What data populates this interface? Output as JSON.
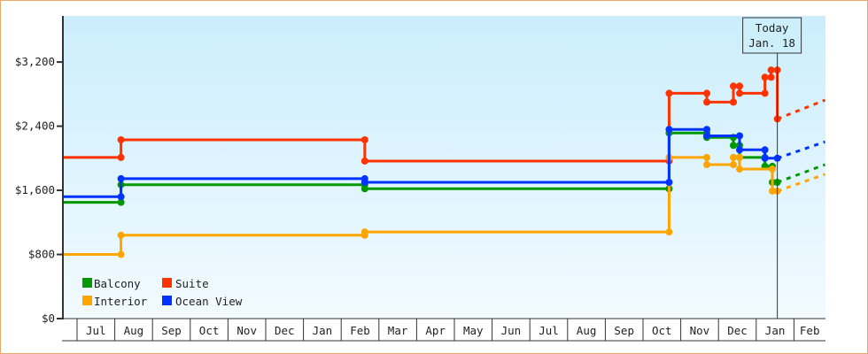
{
  "chart_data": {
    "type": "line",
    "step": true,
    "title": "",
    "xlabel": "",
    "ylabel": "",
    "ylim": [
      0,
      3775
    ],
    "y_ticks": [
      0,
      800,
      1600,
      2400,
      3200
    ],
    "y_tick_labels": [
      "$0",
      "$800",
      "$1,600",
      "$2,400",
      "$3,200"
    ],
    "x_tick_labels": [
      "",
      "Jul",
      "Aug",
      "Sep",
      "Oct",
      "Nov",
      "Dec",
      "Jan",
      "Feb",
      "Mar",
      "Apr",
      "May",
      "Jun",
      "Jul",
      "Aug",
      "Sep",
      "Oct",
      "Nov",
      "Dec",
      "Jan",
      "Feb"
    ],
    "grid": false,
    "legend_position": "bottom-left",
    "background": [
      "#cbeefc",
      "#f2faff"
    ],
    "today": {
      "line1": "Today",
      "line2": "Jan. 18",
      "date": "Jan 18",
      "yr": 3
    },
    "series": [
      {
        "name": "Balcony",
        "color": "#009900",
        "points": [
          [
            "Jun 20",
            1,
            1450
          ],
          [
            "Aug 6",
            1,
            1450
          ],
          [
            "Aug 6",
            1,
            1670
          ],
          [
            "Feb 20",
            2,
            1670
          ],
          [
            "Feb 20",
            2,
            1620
          ],
          [
            "Oct 22",
            2,
            1620
          ],
          [
            "Oct 22",
            2,
            2315
          ],
          [
            "Nov 22",
            2,
            2315
          ],
          [
            "Nov 22",
            2,
            2260
          ],
          [
            "Dec 13",
            2,
            2260
          ],
          [
            "Dec 13",
            2,
            2160
          ],
          [
            "Dec 18",
            2,
            2160
          ],
          [
            "Dec 18",
            2,
            2010
          ],
          [
            "Jan 8",
            3,
            2010
          ],
          [
            "Jan 8",
            3,
            1900
          ],
          [
            "Jan 14",
            3,
            1900
          ],
          [
            "Jan 14",
            3,
            1700
          ],
          [
            "Jan 18",
            3,
            1700
          ]
        ],
        "projection": [
          [
            "Jan 18",
            3,
            1700
          ],
          [
            "Feb 26",
            3,
            1920
          ]
        ]
      },
      {
        "name": "Suite",
        "color": "#ff3300",
        "points": [
          [
            "Jun 20",
            1,
            2010
          ],
          [
            "Aug 6",
            1,
            2010
          ],
          [
            "Aug 6",
            1,
            2230
          ],
          [
            "Feb 20",
            2,
            2230
          ],
          [
            "Feb 20",
            2,
            1965
          ],
          [
            "Oct 22",
            2,
            1965
          ],
          [
            "Oct 22",
            2,
            2810
          ],
          [
            "Nov 22",
            2,
            2810
          ],
          [
            "Nov 22",
            2,
            2700
          ],
          [
            "Dec 13",
            2,
            2700
          ],
          [
            "Dec 13",
            2,
            2900
          ],
          [
            "Dec 18",
            2,
            2900
          ],
          [
            "Dec 18",
            2,
            2810
          ],
          [
            "Jan 8",
            3,
            2810
          ],
          [
            "Jan 8",
            3,
            3010
          ],
          [
            "Jan 13",
            3,
            3010
          ],
          [
            "Jan 13",
            3,
            3100
          ],
          [
            "Jan 18",
            3,
            3100
          ],
          [
            "Jan 18",
            3,
            2490
          ]
        ],
        "projection": [
          [
            "Jan 18",
            3,
            2490
          ],
          [
            "Feb 26",
            3,
            2725
          ]
        ]
      },
      {
        "name": "Interior",
        "color": "#ffa500",
        "points": [
          [
            "Jun 20",
            1,
            800
          ],
          [
            "Aug 6",
            1,
            800
          ],
          [
            "Aug 6",
            1,
            1040
          ],
          [
            "Feb 20",
            2,
            1040
          ],
          [
            "Feb 20",
            2,
            1080
          ],
          [
            "Oct 22",
            2,
            1080
          ],
          [
            "Oct 22",
            2,
            2010
          ],
          [
            "Nov 22",
            2,
            2010
          ],
          [
            "Nov 22",
            2,
            1920
          ],
          [
            "Dec 13",
            2,
            1920
          ],
          [
            "Dec 13",
            2,
            2010
          ],
          [
            "Dec 18",
            2,
            2010
          ],
          [
            "Dec 18",
            2,
            1865
          ],
          [
            "Jan 14",
            3,
            1865
          ],
          [
            "Jan 14",
            3,
            1590
          ],
          [
            "Jan 18",
            3,
            1590
          ]
        ],
        "projection": [
          [
            "Jan 18",
            3,
            1590
          ],
          [
            "Feb 26",
            3,
            1800
          ]
        ]
      },
      {
        "name": "Ocean View",
        "color": "#0033ff",
        "points": [
          [
            "Jun 20",
            1,
            1520
          ],
          [
            "Aug 6",
            1,
            1520
          ],
          [
            "Aug 6",
            1,
            1745
          ],
          [
            "Feb 20",
            2,
            1745
          ],
          [
            "Feb 20",
            2,
            1700
          ],
          [
            "Oct 22",
            2,
            1700
          ],
          [
            "Oct 22",
            2,
            2360
          ],
          [
            "Nov 22",
            2,
            2360
          ],
          [
            "Nov 22",
            2,
            2280
          ],
          [
            "Dec 18",
            2,
            2280
          ],
          [
            "Dec 18",
            2,
            2105
          ],
          [
            "Jan 8",
            3,
            2105
          ],
          [
            "Jan 8",
            3,
            2000
          ],
          [
            "Jan 18",
            3,
            2000
          ]
        ],
        "projection": [
          [
            "Jan 18",
            3,
            2000
          ],
          [
            "Feb 26",
            3,
            2205
          ]
        ]
      }
    ]
  }
}
